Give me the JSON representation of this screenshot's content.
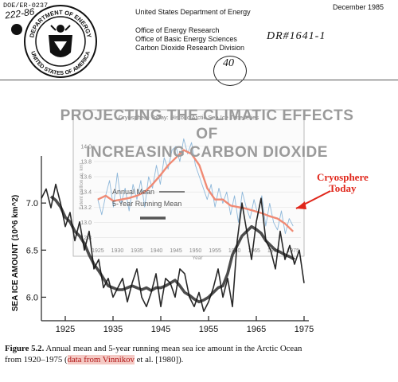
{
  "header": {
    "doc_id": "DOE/ER-0237",
    "handwritten_number": "222-86",
    "agency": "United States Department of Energy",
    "office_1": "Office of Energy Research",
    "office_2": "Office of Basic Energy Sciences",
    "office_3": "Carbon Dioxide Research Division",
    "date": "December 1985",
    "handwritten_ref": "DR#1641-1",
    "handwritten_page": "40"
  },
  "seal": {
    "text_top": "DEPARTMENT OF ENERGY",
    "text_bottom": "UNITED STATES OF AMERICA"
  },
  "headline": {
    "line1": "PROJECTING THE CLIMATIC EFFECTS",
    "line2": "OF",
    "line3": "INCREASING CARBON DIOXIDE"
  },
  "annotation": {
    "line1": "Cryosphere",
    "line2": "Today",
    "color": "#e0261a"
  },
  "inset_title": "Cryosphere Today: Historic Arctic Sea Ice Timeseries",
  "figure": {
    "label": "Figure 5.2.",
    "caption_main": "Annual mean and 5-year running mean sea ice amount in the Arctic Ocean from 1920–1975 (",
    "caption_highlight": "data from Vinnikov",
    "caption_tail": " et al. [1980]).",
    "highlight_color": "#f4c9c4"
  },
  "chart_data": [
    {
      "type": "line",
      "title": "",
      "xlabel": "",
      "ylabel": "SEA ICE AMOUNT (10^6 km^2)",
      "xlim": [
        1920,
        1976
      ],
      "ylim": [
        5.75,
        7.5
      ],
      "x_ticks": [
        1925,
        1935,
        1945,
        1955,
        1965,
        1975
      ],
      "y_ticks": [
        6.0,
        6.5,
        7.0
      ],
      "legend": [
        "Annual Mean",
        "5-Year Running Mean"
      ],
      "series": [
        {
          "name": "Annual Mean",
          "x": [
            1920,
            1921,
            1922,
            1923,
            1924,
            1925,
            1926,
            1927,
            1928,
            1929,
            1930,
            1931,
            1932,
            1933,
            1934,
            1935,
            1936,
            1937,
            1938,
            1939,
            1940,
            1941,
            1942,
            1943,
            1944,
            1945,
            1946,
            1947,
            1948,
            1949,
            1950,
            1951,
            1952,
            1953,
            1954,
            1955,
            1956,
            1957,
            1958,
            1959,
            1960,
            1961,
            1962,
            1963,
            1964,
            1965,
            1966,
            1967,
            1968,
            1969,
            1970,
            1971,
            1972,
            1973,
            1974,
            1975
          ],
          "values": [
            7.05,
            7.15,
            6.95,
            7.2,
            7.0,
            6.75,
            6.9,
            6.6,
            6.8,
            6.5,
            6.7,
            6.3,
            6.4,
            6.1,
            6.2,
            6.0,
            6.1,
            6.2,
            5.95,
            6.15,
            6.3,
            6.0,
            5.9,
            6.05,
            6.25,
            5.9,
            6.2,
            6.15,
            6.0,
            6.3,
            6.25,
            6.0,
            5.9,
            6.05,
            5.85,
            5.95,
            6.1,
            6.3,
            6.0,
            6.2,
            5.9,
            6.6,
            7.0,
            6.7,
            6.4,
            6.8,
            7.05,
            6.6,
            6.5,
            6.3,
            6.7,
            6.4,
            6.55,
            6.35,
            6.5,
            6.15
          ]
        },
        {
          "name": "5-Year Running Mean",
          "x": [
            1922,
            1923,
            1924,
            1925,
            1926,
            1927,
            1928,
            1929,
            1930,
            1931,
            1932,
            1933,
            1934,
            1935,
            1936,
            1937,
            1938,
            1939,
            1940,
            1941,
            1942,
            1943,
            1944,
            1945,
            1946,
            1947,
            1948,
            1949,
            1950,
            1951,
            1952,
            1953,
            1954,
            1955,
            1956,
            1957,
            1958,
            1959,
            1960,
            1961,
            1962,
            1963,
            1964,
            1965,
            1966,
            1967,
            1968,
            1969,
            1970,
            1971,
            1972,
            1973
          ],
          "values": [
            7.07,
            7.03,
            6.96,
            6.85,
            6.8,
            6.7,
            6.65,
            6.57,
            6.45,
            6.35,
            6.28,
            6.2,
            6.12,
            6.1,
            6.08,
            6.08,
            6.1,
            6.12,
            6.1,
            6.08,
            6.1,
            6.07,
            6.1,
            6.1,
            6.12,
            6.15,
            6.18,
            6.12,
            6.05,
            6.02,
            5.98,
            5.95,
            5.97,
            6.0,
            6.05,
            6.1,
            6.12,
            6.25,
            6.45,
            6.55,
            6.65,
            6.7,
            6.75,
            6.72,
            6.68,
            6.6,
            6.55,
            6.5,
            6.48,
            6.45,
            6.43,
            6.4
          ]
        }
      ]
    },
    {
      "type": "line",
      "title": "Cryosphere Today: Historic Arctic Sea Ice Timeseries",
      "xlabel": "Year",
      "ylabel": "Extent (million sq. km)",
      "xlim": [
        1924,
        1977
      ],
      "ylim": [
        12.7,
        14.25
      ],
      "x_ticks": [
        1925,
        1930,
        1935,
        1940,
        1945,
        1950,
        1955,
        1960,
        1965,
        1970,
        1975
      ],
      "y_ticks": [
        12.8,
        13.0,
        13.2,
        13.4,
        13.6,
        13.8,
        14.0
      ],
      "series": [
        {
          "name": "",
          "x": [
            1925,
            1926,
            1927,
            1928,
            1929,
            1930,
            1931,
            1932,
            1933,
            1934,
            1935,
            1936,
            1937,
            1938,
            1939,
            1940,
            1941,
            1942,
            1943,
            1944,
            1945,
            1946,
            1947,
            1948,
            1949,
            1950,
            1951,
            1952,
            1953,
            1954,
            1955,
            1956,
            1957,
            1958,
            1959,
            1960,
            1961,
            1962,
            1963,
            1964,
            1965,
            1966,
            1967,
            1968,
            1969,
            1970,
            1971,
            1972,
            1973,
            1974,
            1975
          ],
          "values": [
            13.3,
            13.1,
            13.35,
            13.55,
            13.2,
            13.65,
            13.25,
            13.45,
            13.15,
            13.5,
            13.3,
            13.55,
            13.2,
            13.6,
            13.45,
            13.75,
            13.5,
            13.85,
            13.7,
            13.95,
            14.0,
            13.8,
            14.1,
            13.9,
            14.05,
            13.75,
            13.6,
            13.45,
            13.3,
            13.5,
            13.2,
            13.45,
            13.25,
            13.4,
            13.1,
            13.35,
            13.0,
            13.4,
            13.2,
            13.05,
            13.3,
            13.1,
            13.35,
            12.95,
            13.25,
            13.0,
            12.9,
            13.15,
            12.85,
            13.05,
            12.95
          ]
        },
        {
          "name": "",
          "x": [
            1925,
            1927,
            1929,
            1931,
            1933,
            1935,
            1937,
            1939,
            1941,
            1943,
            1945,
            1947,
            1949,
            1951,
            1953,
            1955,
            1957,
            1959,
            1961,
            1963,
            1965,
            1967,
            1969,
            1971,
            1973,
            1975
          ],
          "values": [
            13.3,
            13.35,
            13.28,
            13.3,
            13.32,
            13.35,
            13.4,
            13.5,
            13.62,
            13.75,
            13.85,
            13.95,
            13.9,
            13.75,
            13.45,
            13.3,
            13.3,
            13.22,
            13.2,
            13.18,
            13.15,
            13.12,
            13.08,
            13.05,
            12.98,
            12.88
          ]
        }
      ]
    }
  ]
}
